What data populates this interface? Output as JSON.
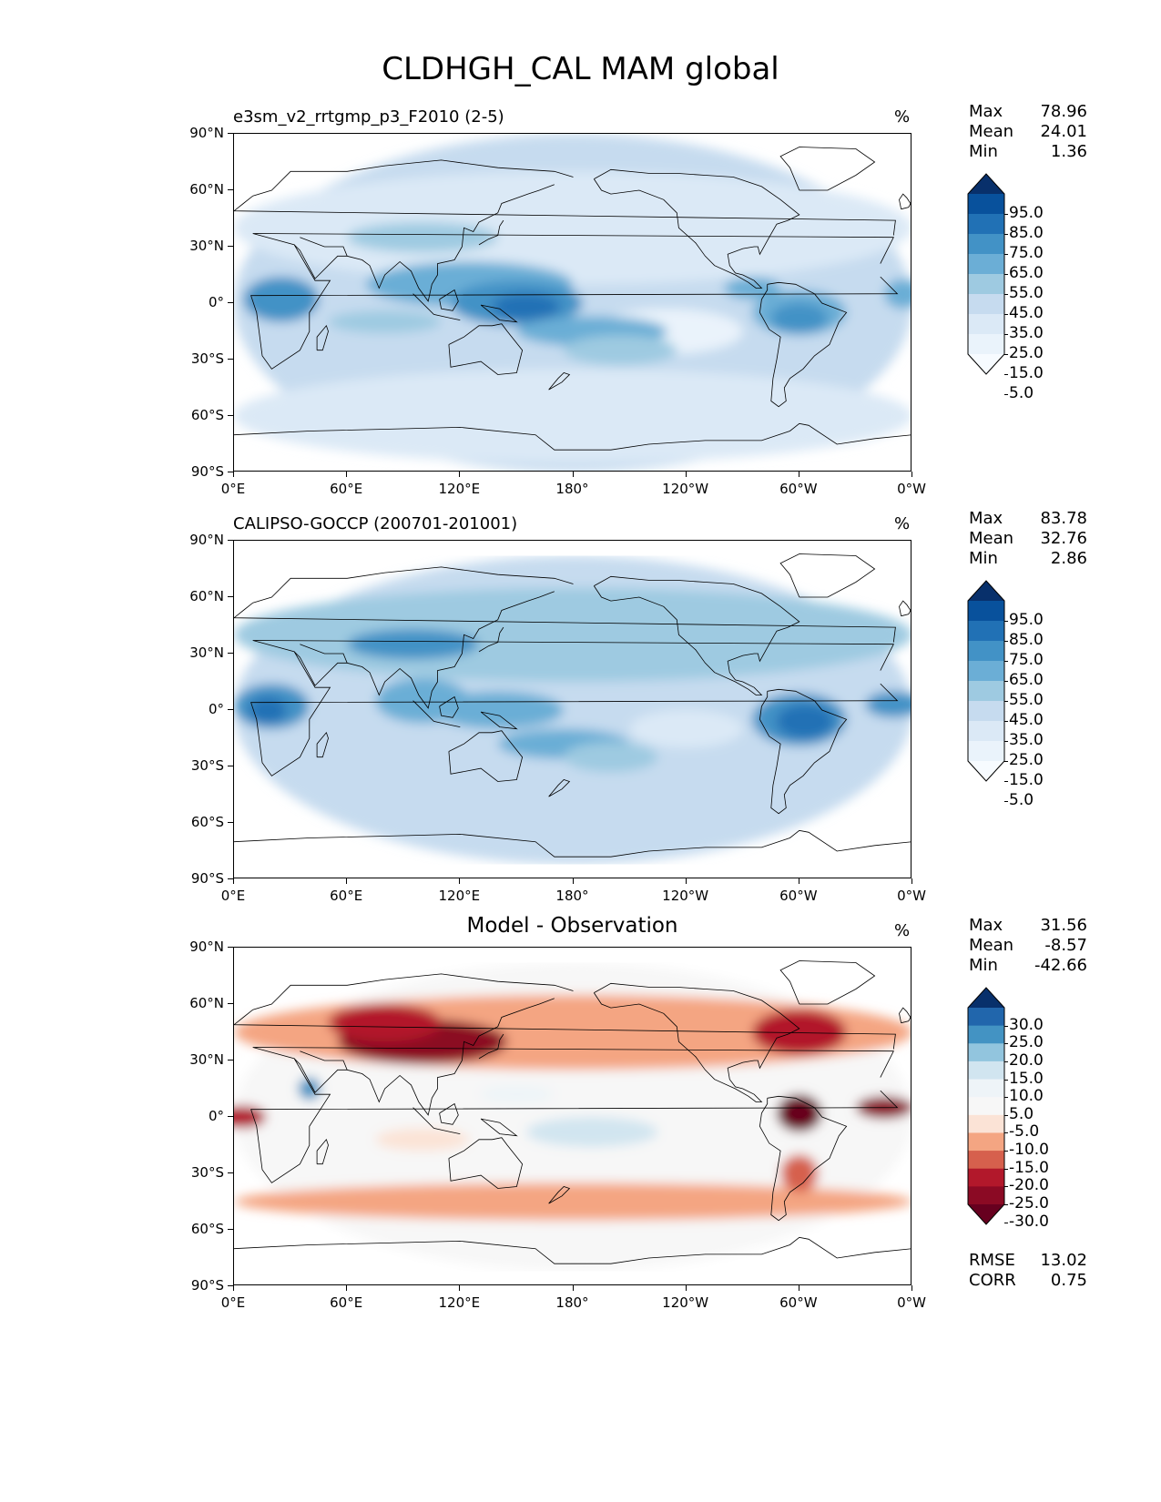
{
  "figure": {
    "title": "CLDHGH_CAL MAM global"
  },
  "axes": {
    "ylabels": [
      "90°N",
      "60°N",
      "30°N",
      "0°",
      "30°S",
      "60°S",
      "90°S"
    ],
    "xlabels": [
      "0°E",
      "60°E",
      "120°E",
      "180°",
      "120°W",
      "60°W",
      "0°W"
    ]
  },
  "panels": [
    {
      "title": "e3sm_v2_rrtgmp_p3_F2010 (2-5)",
      "units": "%",
      "stats": {
        "max_label": "Max",
        "max": "78.96",
        "mean_label": "Mean",
        "mean": "24.01",
        "min_label": "Min",
        "min": "1.36"
      },
      "colorbar": {
        "labels": [
          "95.0",
          "85.0",
          "75.0",
          "65.0",
          "55.0",
          "45.0",
          "35.0",
          "25.0",
          "15.0",
          "5.0"
        ],
        "colors": [
          "#08306b",
          "#08519c",
          "#2171b5",
          "#4292c6",
          "#6baed6",
          "#9ecae1",
          "#c6dbef",
          "#dbe9f6",
          "#eaf3fb",
          "#f7fbff"
        ]
      }
    },
    {
      "title": "CALIPSO-GOCCP (200701-201001)",
      "units": "%",
      "stats": {
        "max_label": "Max",
        "max": "83.78",
        "mean_label": "Mean",
        "mean": "32.76",
        "min_label": "Min",
        "min": "2.86"
      },
      "colorbar": {
        "labels": [
          "95.0",
          "85.0",
          "75.0",
          "65.0",
          "55.0",
          "45.0",
          "35.0",
          "25.0",
          "15.0",
          "5.0"
        ],
        "colors": [
          "#08306b",
          "#08519c",
          "#2171b5",
          "#4292c6",
          "#6baed6",
          "#9ecae1",
          "#c6dbef",
          "#dbe9f6",
          "#eaf3fb",
          "#f7fbff"
        ]
      }
    },
    {
      "title": "Model - Observation",
      "units": "%",
      "stats": {
        "max_label": "Max",
        "max": "31.56",
        "mean_label": "Mean",
        "mean": "-8.57",
        "min_label": "Min",
        "min": "-42.66"
      },
      "colorbar": {
        "labels": [
          "30.0",
          "25.0",
          "20.0",
          "15.0",
          "10.0",
          "5.0",
          "-5.0",
          "-10.0",
          "-15.0",
          "-20.0",
          "-25.0",
          "-30.0"
        ],
        "colors": [
          "#08306b",
          "#2166ac",
          "#4393c3",
          "#92c5de",
          "#d1e5f0",
          "#eef4f8",
          "#f7f7f7",
          "#fbe3d6",
          "#f4a582",
          "#d6604d",
          "#b2182b",
          "#8b0a24",
          "#67001f"
        ]
      },
      "metrics": {
        "rmse_label": "RMSE",
        "rmse": "13.02",
        "corr_label": "CORR",
        "corr": "0.75"
      }
    }
  ],
  "chart_data": [
    {
      "type": "heatmap",
      "title": "e3sm_v2_rrtgmp_p3_F2010 (2-5)",
      "variable": "CLDHGH_CAL",
      "season": "MAM",
      "units": "%",
      "xlim": [
        0,
        360
      ],
      "ylim": [
        -90,
        90
      ],
      "levels": [
        5,
        15,
        25,
        35,
        45,
        55,
        65,
        75,
        85,
        95
      ],
      "features": [
        {
          "lon": 100,
          "lat": 5,
          "value": 60
        },
        {
          "lon": 150,
          "lat": 0,
          "value": 65
        },
        {
          "lon": 25,
          "lat": 0,
          "value": 55
        },
        {
          "lon": 300,
          "lat": -5,
          "value": 55
        },
        {
          "lon": 190,
          "lat": -15,
          "value": 45
        },
        {
          "lon": 230,
          "lat": 0,
          "value": 5
        }
      ],
      "max": 78.96,
      "mean": 24.01,
      "min": 1.36
    },
    {
      "type": "heatmap",
      "title": "CALIPSO-GOCCP (200701-201001)",
      "units": "%",
      "xlim": [
        0,
        360
      ],
      "ylim": [
        -90,
        90
      ],
      "levels": [
        5,
        15,
        25,
        35,
        45,
        55,
        65,
        75,
        85,
        95
      ],
      "features": [
        {
          "lon": 20,
          "lat": 0,
          "value": 60
        },
        {
          "lon": 300,
          "lat": -5,
          "value": 60
        },
        {
          "lon": 95,
          "lat": 35,
          "value": 50
        },
        {
          "lon": 140,
          "lat": 0,
          "value": 55
        },
        {
          "lon": 350,
          "lat": 5,
          "value": 50
        }
      ],
      "max": 83.78,
      "mean": 32.76,
      "min": 2.86
    },
    {
      "type": "heatmap",
      "title": "Model - Observation",
      "units": "%",
      "xlim": [
        0,
        360
      ],
      "ylim": [
        -90,
        90
      ],
      "levels": [
        -30,
        -25,
        -20,
        -15,
        -10,
        -5,
        5,
        10,
        15,
        20,
        25,
        30
      ],
      "features": [
        {
          "lon": 100,
          "lat": 40,
          "value": -30
        },
        {
          "lon": 300,
          "lat": 0,
          "value": -35
        },
        {
          "lon": 350,
          "lat": 5,
          "value": -25
        },
        {
          "lon": 190,
          "lat": -10,
          "value": 15
        },
        {
          "lon": 40,
          "lat": 15,
          "value": 20
        }
      ],
      "max": 31.56,
      "mean": -8.57,
      "min": -42.66,
      "rmse": 13.02,
      "corr": 0.75
    }
  ]
}
